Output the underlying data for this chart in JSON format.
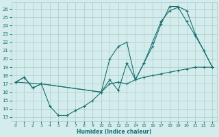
{
  "bg_color": "#d4ecec",
  "grid_color": "#aacccc",
  "line_color": "#1a7070",
  "xlabel": "Humidex (Indice chaleur)",
  "xlim": [
    -0.5,
    23.5
  ],
  "ylim": [
    12.5,
    26.8
  ],
  "yticks": [
    13,
    14,
    15,
    16,
    17,
    18,
    19,
    20,
    21,
    22,
    23,
    24,
    25,
    26
  ],
  "xticks": [
    0,
    1,
    2,
    3,
    4,
    5,
    6,
    7,
    8,
    9,
    10,
    11,
    12,
    13,
    14,
    15,
    16,
    17,
    18,
    19,
    20,
    21,
    22,
    23
  ],
  "line1_x": [
    0,
    1,
    2,
    3,
    4,
    5,
    6,
    7,
    8,
    9,
    10,
    11,
    12,
    13,
    14,
    15,
    16,
    17,
    18,
    19,
    20,
    21,
    22,
    23
  ],
  "line1_y": [
    17.2,
    17.8,
    16.5,
    17.0,
    14.3,
    13.2,
    13.2,
    13.8,
    14.3,
    15.0,
    16.0,
    17.0,
    17.2,
    17.0,
    17.5,
    17.8,
    18.0,
    18.2,
    18.4,
    18.6,
    18.8,
    19.0,
    19.0,
    19.0
  ],
  "line2_x": [
    0,
    1,
    2,
    3,
    10,
    11,
    12,
    13,
    14,
    15,
    16,
    17,
    18,
    19,
    20,
    21,
    22,
    23
  ],
  "line2_y": [
    17.2,
    17.8,
    16.5,
    17.0,
    16.0,
    20.0,
    21.5,
    22.0,
    17.5,
    19.5,
    21.5,
    24.2,
    26.3,
    26.3,
    25.8,
    23.0,
    21.0,
    19.0
  ],
  "line3_x": [
    0,
    3,
    10,
    11,
    12,
    13,
    14,
    15,
    16,
    17,
    18,
    19,
    20,
    21,
    22,
    23
  ],
  "line3_y": [
    17.2,
    17.0,
    16.0,
    17.5,
    16.2,
    19.5,
    17.5,
    19.5,
    22.0,
    24.5,
    25.8,
    26.2,
    24.5,
    22.8,
    21.0,
    19.0
  ]
}
